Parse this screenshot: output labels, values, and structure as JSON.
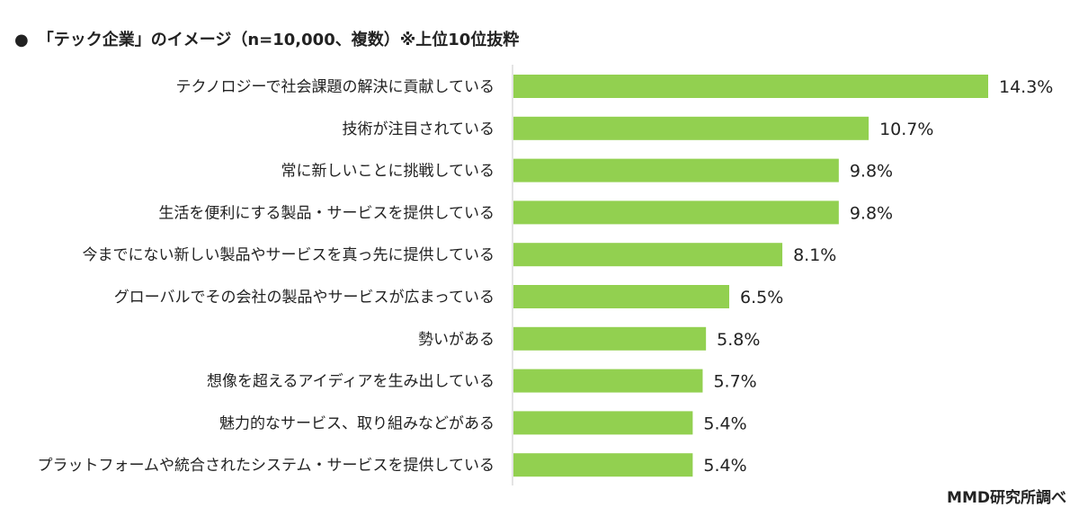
{
  "header": {
    "bullet": "●",
    "title": "「テック企業」のイメージ（n=10,000、複数）※上位10位抜粋"
  },
  "footer": {
    "source": "MMD研究所調べ"
  },
  "colors": {
    "bar": "#92d050",
    "axis": "#c8c8c8",
    "text": "#222222"
  },
  "chart_data": {
    "type": "bar",
    "orientation": "horizontal",
    "title": "「テック企業」のイメージ（n=10,000、複数）※上位10位抜粋",
    "categories": [
      "テクノロジーで社会課題の解決に貢献している",
      "技術が注目されている",
      "常に新しいことに挑戦している",
      "生活を便利にする製品・サービスを提供している",
      "今までにない新しい製品やサービスを真っ先に提供している",
      "グローバルでその会社の製品やサービスが広まっている",
      "勢いがある",
      "想像を超えるアイディアを生み出している",
      "魅力的なサービス、取り組みなどがある",
      "プラットフォームや統合されたシステム・サービスを提供している"
    ],
    "values": [
      14.3,
      10.7,
      9.8,
      9.8,
      8.1,
      6.5,
      5.8,
      5.7,
      5.4,
      5.4
    ],
    "value_labels": [
      "14.3%",
      "10.7%",
      "9.8%",
      "9.8%",
      "8.1%",
      "6.5%",
      "5.8%",
      "5.7%",
      "5.4%",
      "5.4%"
    ],
    "unit": "%",
    "xlim": [
      0,
      14.3
    ],
    "grid": false,
    "legend": "none"
  }
}
